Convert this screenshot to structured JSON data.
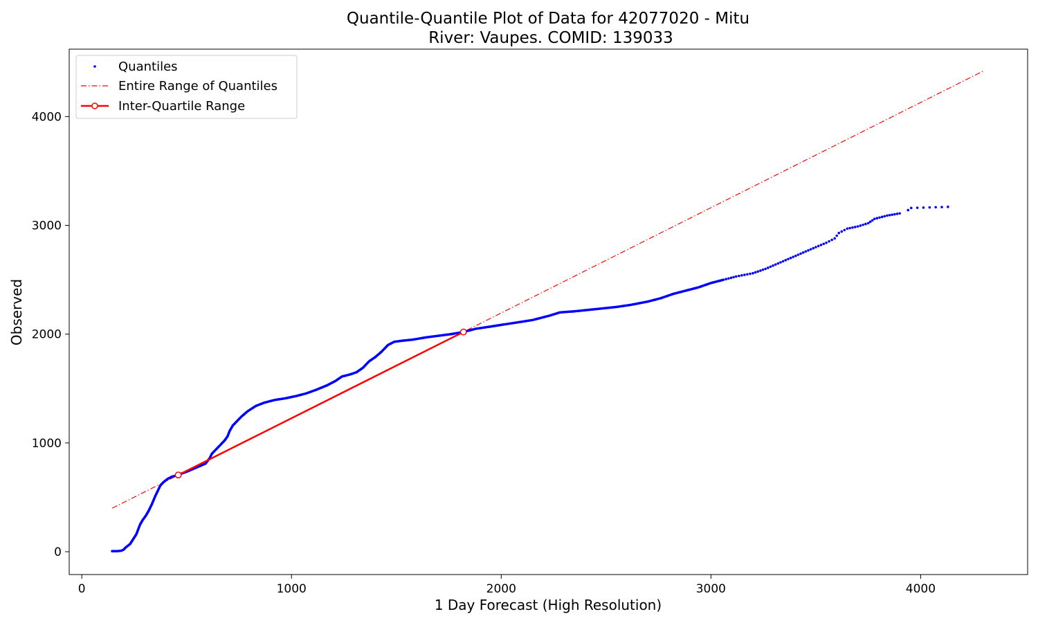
{
  "chart_data": {
    "type": "scatter",
    "title": "Quantile-Quantile Plot of Data for 42077020 - Mitu",
    "subtitle": "River: Vaupes. COMID: 139033",
    "xlabel": "1 Day Forecast (High Resolution)",
    "ylabel": "Observed",
    "xlim": [
      -60,
      4510
    ],
    "ylim": [
      -210,
      4620
    ],
    "xticks": [
      0,
      1000,
      2000,
      3000,
      4000
    ],
    "yticks": [
      0,
      1000,
      2000,
      3000,
      4000
    ],
    "grid": false,
    "legend_position": "top-left",
    "legend": [
      {
        "label": "Quantiles",
        "style": "dots",
        "color": "#0000ff"
      },
      {
        "label": "Entire Range of Quantiles",
        "style": "dashdot",
        "color": "#ff0000"
      },
      {
        "label": "Inter-Quartile Range",
        "style": "line-with-circle-markers",
        "color": "#ff0000"
      }
    ],
    "series": [
      {
        "name": "Quantiles",
        "type": "scatter",
        "color": "#0000ff",
        "points": [
          [
            145,
            5
          ],
          [
            170,
            5
          ],
          [
            190,
            10
          ],
          [
            200,
            20
          ],
          [
            210,
            40
          ],
          [
            220,
            55
          ],
          [
            230,
            70
          ],
          [
            240,
            100
          ],
          [
            250,
            130
          ],
          [
            260,
            160
          ],
          [
            268,
            200
          ],
          [
            278,
            250
          ],
          [
            290,
            290
          ],
          [
            305,
            330
          ],
          [
            320,
            380
          ],
          [
            335,
            440
          ],
          [
            350,
            510
          ],
          [
            365,
            570
          ],
          [
            375,
            610
          ],
          [
            390,
            640
          ],
          [
            410,
            670
          ],
          [
            430,
            690
          ],
          [
            450,
            700
          ],
          [
            470,
            715
          ],
          [
            500,
            735
          ],
          [
            530,
            760
          ],
          [
            560,
            785
          ],
          [
            590,
            810
          ],
          [
            610,
            860
          ],
          [
            620,
            900
          ],
          [
            640,
            940
          ],
          [
            660,
            980
          ],
          [
            680,
            1020
          ],
          [
            695,
            1060
          ],
          [
            705,
            1110
          ],
          [
            720,
            1160
          ],
          [
            740,
            1200
          ],
          [
            760,
            1240
          ],
          [
            790,
            1290
          ],
          [
            830,
            1340
          ],
          [
            870,
            1370
          ],
          [
            920,
            1395
          ],
          [
            970,
            1410
          ],
          [
            1020,
            1430
          ],
          [
            1070,
            1455
          ],
          [
            1120,
            1490
          ],
          [
            1170,
            1530
          ],
          [
            1210,
            1570
          ],
          [
            1240,
            1610
          ],
          [
            1280,
            1630
          ],
          [
            1310,
            1650
          ],
          [
            1340,
            1690
          ],
          [
            1370,
            1750
          ],
          [
            1400,
            1790
          ],
          [
            1430,
            1840
          ],
          [
            1460,
            1900
          ],
          [
            1490,
            1930
          ],
          [
            1530,
            1940
          ],
          [
            1580,
            1950
          ],
          [
            1640,
            1970
          ],
          [
            1700,
            1985
          ],
          [
            1760,
            2000
          ],
          [
            1820,
            2020
          ],
          [
            1880,
            2050
          ],
          [
            1950,
            2070
          ],
          [
            2050,
            2100
          ],
          [
            2150,
            2130
          ],
          [
            2230,
            2170
          ],
          [
            2280,
            2200
          ],
          [
            2350,
            2210
          ],
          [
            2450,
            2230
          ],
          [
            2550,
            2250
          ],
          [
            2620,
            2270
          ],
          [
            2700,
            2300
          ],
          [
            2760,
            2330
          ],
          [
            2820,
            2370
          ],
          [
            2880,
            2400
          ],
          [
            2940,
            2430
          ],
          [
            3000,
            2470
          ],
          [
            3060,
            2500
          ],
          [
            3120,
            2530
          ],
          [
            3200,
            2560
          ],
          [
            3260,
            2600
          ],
          [
            3320,
            2650
          ],
          [
            3380,
            2700
          ],
          [
            3440,
            2750
          ],
          [
            3500,
            2800
          ],
          [
            3550,
            2840
          ],
          [
            3590,
            2880
          ],
          [
            3610,
            2930
          ],
          [
            3650,
            2970
          ],
          [
            3700,
            2990
          ],
          [
            3750,
            3020
          ],
          [
            3780,
            3060
          ],
          [
            3840,
            3090
          ],
          [
            3900,
            3110
          ],
          [
            3940,
            3140
          ],
          [
            3955,
            3160
          ],
          [
            4130,
            3170
          ]
        ]
      },
      {
        "name": "Entire Range of Quantiles",
        "type": "line",
        "color": "#ff0000",
        "points": [
          [
            145,
            400
          ],
          [
            4300,
            4420
          ]
        ]
      },
      {
        "name": "Inter-Quartile Range",
        "type": "line",
        "color": "#ff0000",
        "points": [
          [
            460,
            705
          ],
          [
            1820,
            2020
          ]
        ]
      }
    ]
  }
}
